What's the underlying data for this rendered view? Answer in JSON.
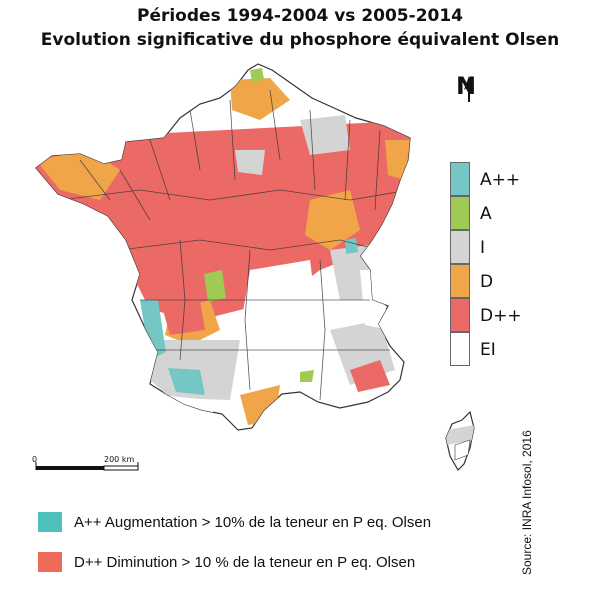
{
  "title_line1": "Périodes 1994-2004 vs 2005-2014",
  "title_line2": "Evolution significative du phosphore équivalent Olsen",
  "north_label": "N",
  "scale_bar": {
    "start_label": "0",
    "end_label": "200 km"
  },
  "legend": [
    {
      "code": "A++",
      "color": "#74c7c4"
    },
    {
      "code": "A",
      "color": "#9fca54"
    },
    {
      "code": "I",
      "color": "#d4d4d4"
    },
    {
      "code": "D",
      "color": "#f0a548"
    },
    {
      "code": "D++",
      "color": "#ec6a66"
    },
    {
      "code": "EI",
      "color": "#ffffff"
    }
  ],
  "notes": [
    {
      "text": "A++ Augmentation > 10% de la teneur en P eq. Olsen",
      "color": "#4fc1bd"
    },
    {
      "text": "D++ Diminution > 10 % de la teneur en P eq. Olsen",
      "color": "#ec6a57"
    }
  ],
  "source": "Source: INRA Infosol, 2016"
}
